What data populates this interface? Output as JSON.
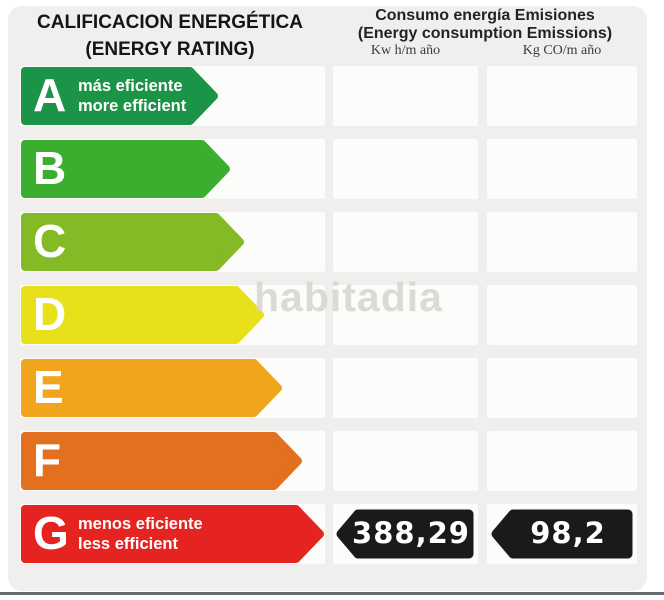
{
  "header": {
    "title_es": "CALIFICACION ENERGÉTICA",
    "title_en": "(ENERGY RATING)",
    "columns_title_es": "Consumo energía Emisiones",
    "columns_title_en": "(Energy consumption Emissions)",
    "consumption_unit": "Kw h/m año",
    "emissions_unit": "Kg CO/m año"
  },
  "watermark": "habitadia",
  "scale": [
    {
      "grade": "A",
      "color": "#1c9447",
      "arrow_width": 197,
      "note_es": "más eficiente",
      "note_en": "more efficient"
    },
    {
      "grade": "B",
      "color": "#3cae2f",
      "arrow_width": 209
    },
    {
      "grade": "C",
      "color": "#84ba26",
      "arrow_width": 223
    },
    {
      "grade": "D",
      "color": "#e7e01b",
      "arrow_width": 243
    },
    {
      "grade": "E",
      "color": "#f0a51c",
      "arrow_width": 261
    },
    {
      "grade": "F",
      "color": "#e2701e",
      "arrow_width": 281
    },
    {
      "grade": "G",
      "color": "#e52421",
      "arrow_width": 303,
      "note_es": "menos eficiente",
      "note_en": "less efficient"
    }
  ],
  "result": {
    "grade": "G",
    "consumption": "388,29",
    "emissions": "98,2",
    "badge_color": "#1a1a1a",
    "text_color": "#ffffff"
  },
  "colors": {
    "panel_background": "#f1efee",
    "row_background": "#fcfcfb",
    "page_background": "#ffffff",
    "bottom_divider": "#666b70",
    "title_text": "#151515"
  },
  "chart_data": {
    "type": "bar",
    "title": "CALIFICACION ENERGÉTICA (ENERGY RATING)",
    "categories": [
      "A",
      "B",
      "C",
      "D",
      "E",
      "F",
      "G"
    ],
    "category_notes": {
      "A": "más eficiente / more efficient",
      "G": "menos eficiente / less efficient"
    },
    "bar_colors": [
      "#1c9447",
      "#3cae2f",
      "#84ba26",
      "#e7e01b",
      "#f0a51c",
      "#e2701e",
      "#e52421"
    ],
    "columns": [
      "Consumo energía (Kw h/m año)",
      "Emisiones (Kg CO/m año)"
    ],
    "rated_grade": "G",
    "values": {
      "consumption_kwh_m2_year": 388.29,
      "emissions_kg_co2_m2_year": 98.2
    },
    "legend_position": "none",
    "grid": false
  }
}
